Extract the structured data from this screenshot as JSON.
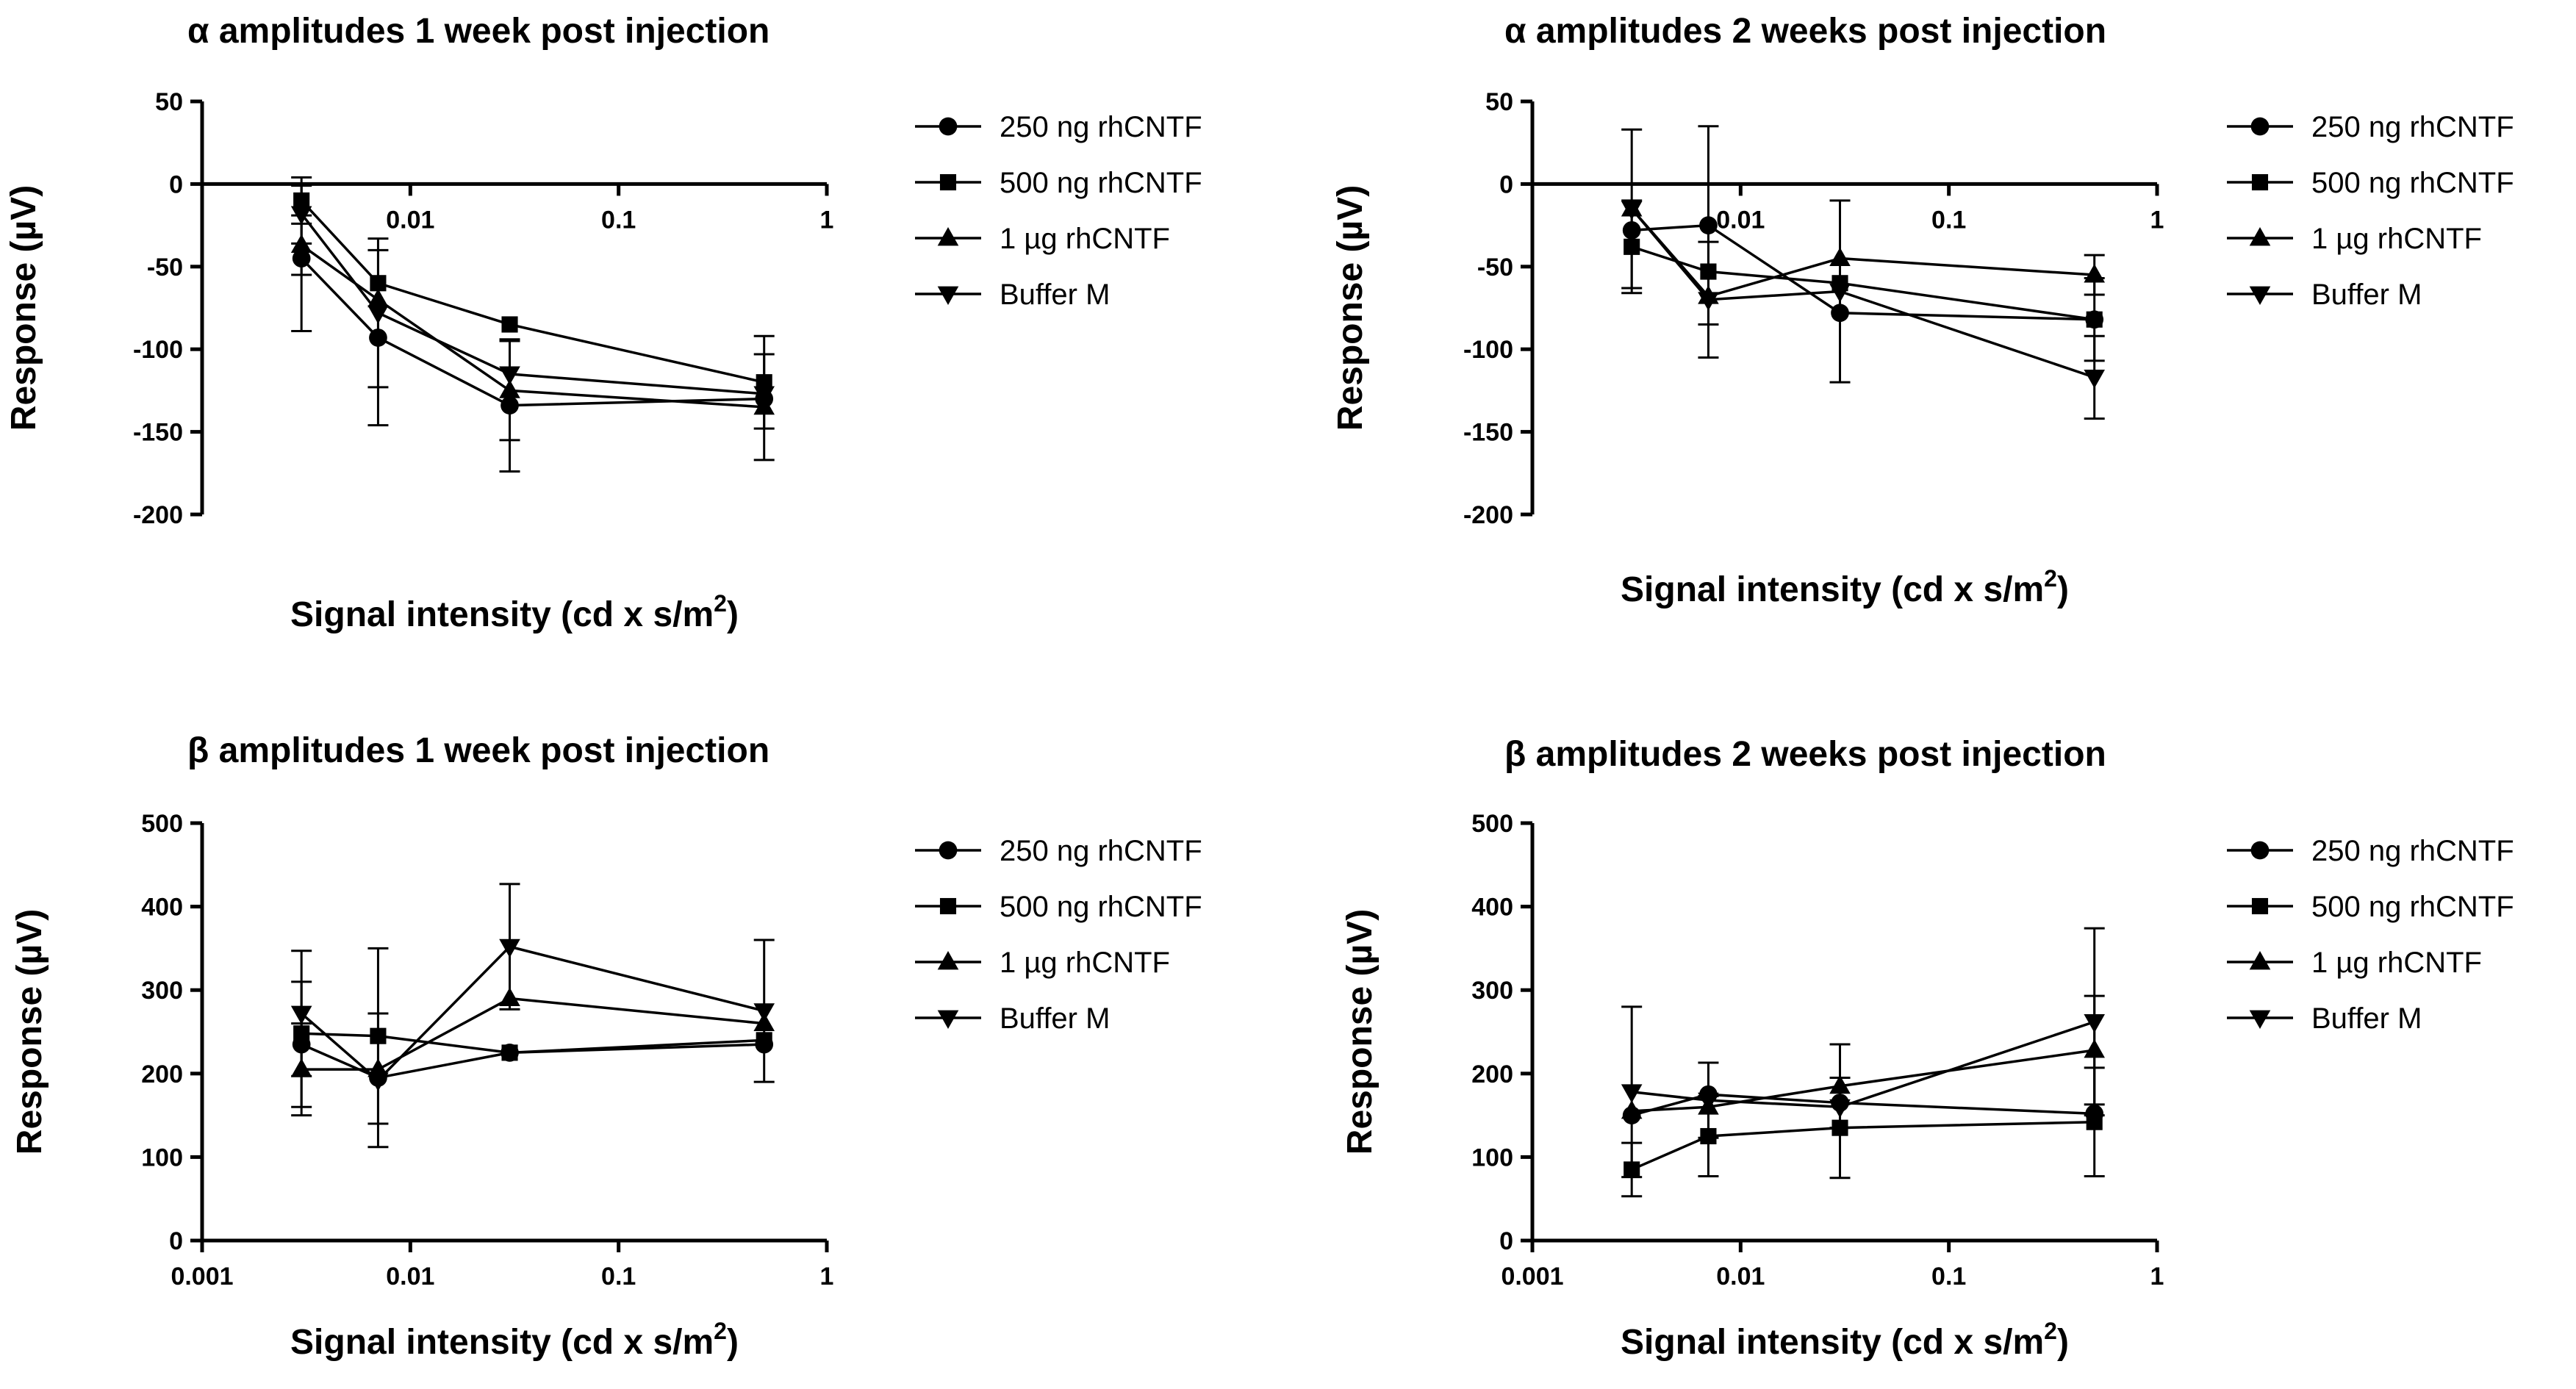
{
  "series_styles": [
    {
      "name": "250 ng rhCNTF",
      "marker": "circle"
    },
    {
      "name": "500 ng rhCNTF",
      "marker": "square"
    },
    {
      "name": "1 µg rhCNTF",
      "marker": "triangle-up"
    },
    {
      "name": "Buffer M",
      "marker": "triangle-down"
    }
  ],
  "chart_data": [
    {
      "type": "line",
      "title": "α amplitudes 1 week post injection",
      "xlabel": "Signal intensity (cd x s/m",
      "xlabel_sup": "2",
      "xlabel_tail": ")",
      "ylabel": "Response (µV)",
      "xscale": "log",
      "xlim": [
        0.001,
        1
      ],
      "ylim": [
        -200,
        50
      ],
      "yticks": [
        50,
        0,
        -50,
        -100,
        -150,
        -200
      ],
      "ytick_labels": [
        "50",
        "0",
        "-50",
        "-100",
        "-150",
        "-200"
      ],
      "xticks": [
        0.01,
        0.1,
        1
      ],
      "xtick_labels": [
        "0.01",
        "0.1",
        "1"
      ],
      "x_axis_at_zero": true,
      "legend": "right",
      "series": [
        {
          "name": "250 ng rhCNTF",
          "x": [
            0.003,
            0.007,
            0.03,
            0.5
          ],
          "y": [
            -45,
            -93,
            -134,
            -130
          ],
          "err": [
            44,
            53,
            40,
            0
          ]
        },
        {
          "name": "500 ng rhCNTF",
          "x": [
            0.003,
            0.007,
            0.03,
            0.5
          ],
          "y": [
            -10,
            -60,
            -85,
            -120
          ],
          "err": [
            14,
            0,
            0,
            28
          ]
        },
        {
          "name": "1 µg rhCNTF",
          "x": [
            0.003,
            0.007,
            0.03,
            0.5
          ],
          "y": [
            -37,
            -70,
            -125,
            -135
          ],
          "err": [
            18,
            0,
            30,
            32
          ]
        },
        {
          "name": "Buffer M",
          "x": [
            0.003,
            0.007,
            0.03,
            0.5
          ],
          "y": [
            -18,
            -78,
            -115,
            -127
          ],
          "err": [
            18,
            45,
            0,
            0
          ]
        }
      ]
    },
    {
      "type": "line",
      "title": "α amplitudes 2 weeks post injection",
      "xlabel": "Signal intensity (cd x s/m",
      "xlabel_sup": "2",
      "xlabel_tail": ")",
      "ylabel": "Response (µV)",
      "xscale": "log",
      "xlim": [
        0.001,
        1
      ],
      "ylim": [
        -200,
        50
      ],
      "yticks": [
        50,
        0,
        -50,
        -100,
        -150,
        -200
      ],
      "ytick_labels": [
        "50",
        "0",
        "-50",
        "-100",
        "-150",
        "-200"
      ],
      "xticks": [
        0.01,
        0.1,
        1
      ],
      "xtick_labels": [
        "0.01",
        "0.1",
        "1"
      ],
      "x_axis_at_zero": true,
      "legend": "right",
      "series": [
        {
          "name": "250 ng rhCNTF",
          "x": [
            0.003,
            0.007,
            0.03,
            0.5
          ],
          "y": [
            -28,
            -25,
            -78,
            -82
          ],
          "err": [
            0,
            60,
            0,
            0
          ]
        },
        {
          "name": "500 ng rhCNTF",
          "x": [
            0.003,
            0.007,
            0.03,
            0.5
          ],
          "y": [
            -38,
            -53,
            -60,
            -82
          ],
          "err": [
            28,
            0,
            0,
            25
          ]
        },
        {
          "name": "1 µg rhCNTF",
          "x": [
            0.003,
            0.007,
            0.03,
            0.5
          ],
          "y": [
            -15,
            -68,
            -45,
            -55
          ],
          "err": [
            0,
            0,
            0,
            12
          ]
        },
        {
          "name": "Buffer M",
          "x": [
            0.003,
            0.007,
            0.03,
            0.5
          ],
          "y": [
            -15,
            -70,
            -65,
            -117
          ],
          "err": [
            48,
            35,
            55,
            25
          ]
        }
      ]
    },
    {
      "type": "line",
      "title": "β amplitudes 1 week post injection",
      "xlabel": "Signal intensity (cd x s/m",
      "xlabel_sup": "2",
      "xlabel_tail": ")",
      "ylabel": "Response (µV)",
      "xscale": "log",
      "xlim": [
        0.001,
        1
      ],
      "ylim": [
        0,
        500
      ],
      "yticks": [
        500,
        400,
        300,
        200,
        100,
        0
      ],
      "ytick_labels": [
        "500",
        "400",
        "300",
        "200",
        "100",
        "0"
      ],
      "xticks": [
        0.001,
        0.01,
        0.1,
        1
      ],
      "xtick_labels": [
        "0.001",
        "0.01",
        "0.1",
        "1"
      ],
      "x_axis_at_zero": false,
      "legend": "right",
      "series": [
        {
          "name": "250 ng rhCNTF",
          "x": [
            0.003,
            0.007,
            0.03,
            0.5
          ],
          "y": [
            235,
            195,
            225,
            235
          ],
          "err": [
            75,
            0,
            0,
            0
          ]
        },
        {
          "name": "500 ng rhCNTF",
          "x": [
            0.003,
            0.007,
            0.03,
            0.5
          ],
          "y": [
            248,
            245,
            225,
            240
          ],
          "err": [
            0,
            105,
            0,
            0
          ]
        },
        {
          "name": "1 µg rhCNTF",
          "x": [
            0.003,
            0.007,
            0.03,
            0.5
          ],
          "y": [
            205,
            205,
            290,
            260
          ],
          "err": [
            55,
            0,
            0,
            0
          ]
        },
        {
          "name": "Buffer M",
          "x": [
            0.003,
            0.007,
            0.03,
            0.5
          ],
          "y": [
            272,
            192,
            352,
            275
          ],
          "err": [
            75,
            80,
            75,
            85
          ]
        }
      ]
    },
    {
      "type": "line",
      "title": "β amplitudes 2 weeks post injection",
      "xlabel": "Signal intensity (cd x s/m",
      "xlabel_sup": "2",
      "xlabel_tail": ")",
      "ylabel": "Response (µV)",
      "xscale": "log",
      "xlim": [
        0.001,
        1
      ],
      "ylim": [
        0,
        500
      ],
      "yticks": [
        500,
        400,
        300,
        200,
        100,
        0
      ],
      "ytick_labels": [
        "500",
        "400",
        "300",
        "200",
        "100",
        "0"
      ],
      "xticks": [
        0.001,
        0.01,
        0.1,
        1
      ],
      "xtick_labels": [
        "0.001",
        "0.01",
        "0.1",
        "1"
      ],
      "x_axis_at_zero": false,
      "legend": "right",
      "series": [
        {
          "name": "250 ng rhCNTF",
          "x": [
            0.003,
            0.007,
            0.03,
            0.5
          ],
          "y": [
            150,
            175,
            165,
            152
          ],
          "err": [
            0,
            0,
            0,
            0
          ]
        },
        {
          "name": "500 ng rhCNTF",
          "x": [
            0.003,
            0.007,
            0.03,
            0.5
          ],
          "y": [
            85,
            125,
            135,
            142
          ],
          "err": [
            32,
            48,
            60,
            65
          ]
        },
        {
          "name": "1 µg rhCNTF",
          "x": [
            0.003,
            0.007,
            0.03,
            0.5
          ],
          "y": [
            155,
            160,
            185,
            228
          ],
          "err": [
            0,
            0,
            50,
            65
          ]
        },
        {
          "name": "Buffer M",
          "x": [
            0.003,
            0.007,
            0.03,
            0.5
          ],
          "y": [
            178,
            168,
            160,
            262
          ],
          "err": [
            102,
            45,
            0,
            112
          ]
        }
      ]
    }
  ]
}
